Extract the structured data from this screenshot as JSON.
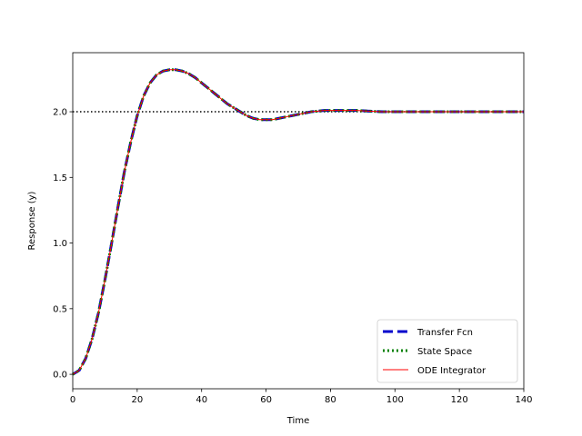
{
  "chart_data": {
    "type": "line",
    "title": "",
    "xlabel": "Time",
    "ylabel": "Response (y)",
    "xlim": [
      0,
      140
    ],
    "ylim": [
      -0.11,
      2.45
    ],
    "xticks": [
      0,
      20,
      40,
      60,
      80,
      100,
      120,
      140
    ],
    "yticks": [
      0.0,
      0.5,
      1.0,
      1.5,
      2.0
    ],
    "xtick_labels": [
      "0",
      "20",
      "40",
      "60",
      "80",
      "100",
      "120",
      "140"
    ],
    "ytick_labels": [
      "0.0",
      "0.5",
      "1.0",
      "1.5",
      "2.0"
    ],
    "grid": false,
    "legend_position": "lower-right",
    "reference_line": {
      "y": 2.0,
      "style": "dotted",
      "color": "#000000"
    },
    "x": [
      0,
      2,
      4,
      6,
      8,
      10,
      12,
      14,
      16,
      18,
      20,
      22,
      24,
      26,
      28,
      30,
      32,
      34,
      36,
      38,
      40,
      42,
      44,
      46,
      48,
      50,
      52,
      54,
      56,
      58,
      60,
      62,
      64,
      66,
      68,
      70,
      72,
      74,
      76,
      78,
      80,
      84,
      88,
      92,
      96,
      100,
      104,
      108,
      112,
      116,
      120,
      124,
      128,
      132,
      136,
      140
    ],
    "series": [
      {
        "name": "Transfer Fcn",
        "color": "#0000cc",
        "style": "dashed",
        "values": [
          0.0,
          0.03,
          0.12,
          0.27,
          0.47,
          0.72,
          0.99,
          1.27,
          1.54,
          1.77,
          1.97,
          2.12,
          2.22,
          2.28,
          2.31,
          2.32,
          2.32,
          2.31,
          2.29,
          2.26,
          2.22,
          2.18,
          2.14,
          2.1,
          2.06,
          2.03,
          2.0,
          1.97,
          1.95,
          1.94,
          1.94,
          1.94,
          1.95,
          1.96,
          1.97,
          1.98,
          1.99,
          2.0,
          2.005,
          2.01,
          2.01,
          2.01,
          2.01,
          2.005,
          2.0,
          2.0,
          2.0,
          2.0,
          2.0,
          2.0,
          2.0,
          2.0,
          2.0,
          2.0,
          2.0,
          2.0
        ]
      },
      {
        "name": "State Space",
        "color": "#008000",
        "style": "dotted",
        "values": [
          0.0,
          0.03,
          0.12,
          0.27,
          0.47,
          0.72,
          0.99,
          1.27,
          1.54,
          1.77,
          1.97,
          2.12,
          2.22,
          2.28,
          2.31,
          2.32,
          2.32,
          2.31,
          2.29,
          2.26,
          2.22,
          2.18,
          2.14,
          2.1,
          2.06,
          2.03,
          2.0,
          1.97,
          1.95,
          1.94,
          1.94,
          1.94,
          1.95,
          1.96,
          1.97,
          1.98,
          1.99,
          2.0,
          2.005,
          2.01,
          2.01,
          2.01,
          2.01,
          2.005,
          2.0,
          2.0,
          2.0,
          2.0,
          2.0,
          2.0,
          2.0,
          2.0,
          2.0,
          2.0,
          2.0,
          2.0
        ]
      },
      {
        "name": "ODE Integrator",
        "color": "#ff0000",
        "style": "solid",
        "values": [
          0.0,
          0.03,
          0.12,
          0.27,
          0.47,
          0.72,
          0.99,
          1.27,
          1.54,
          1.77,
          1.97,
          2.12,
          2.22,
          2.28,
          2.31,
          2.32,
          2.32,
          2.31,
          2.29,
          2.26,
          2.22,
          2.18,
          2.14,
          2.1,
          2.06,
          2.03,
          2.0,
          1.97,
          1.95,
          1.94,
          1.94,
          1.94,
          1.95,
          1.96,
          1.97,
          1.98,
          1.99,
          2.0,
          2.005,
          2.01,
          2.01,
          2.01,
          2.01,
          2.005,
          2.0,
          2.0,
          2.0,
          2.0,
          2.0,
          2.0,
          2.0,
          2.0,
          2.0,
          2.0,
          2.0,
          2.0
        ]
      }
    ]
  }
}
